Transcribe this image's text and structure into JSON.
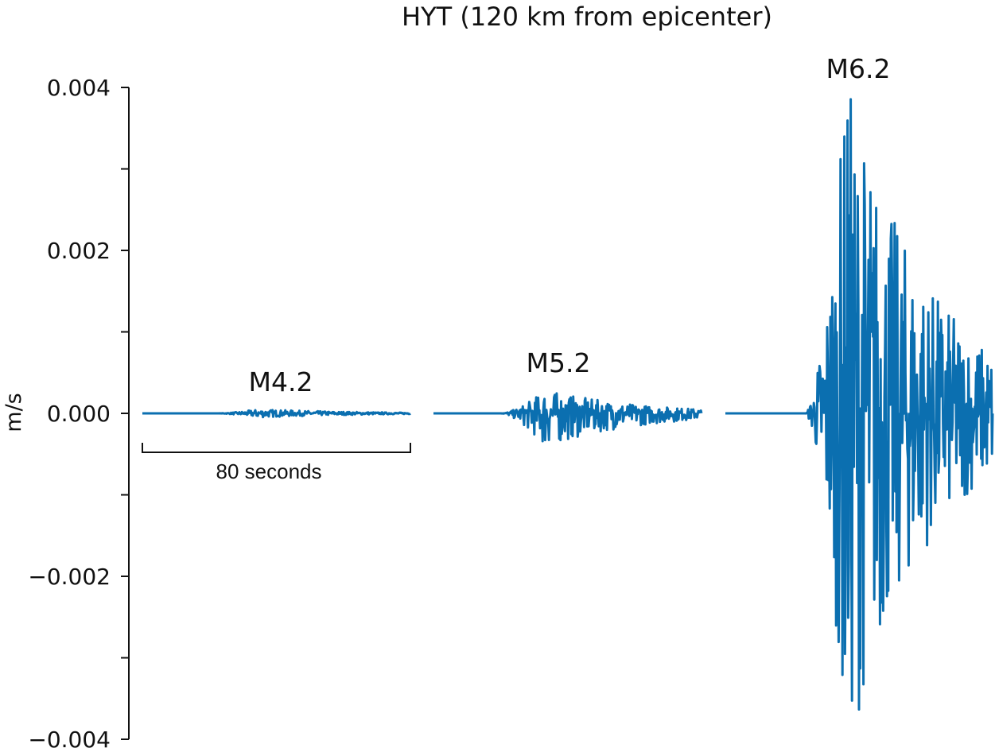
{
  "chart_data": {
    "type": "line",
    "title": "HYT (120 km from epicenter)",
    "ylabel": "m/s",
    "xlabel": "",
    "ylim": [
      -0.004,
      0.004
    ],
    "y_ticks": [
      -0.004,
      -0.003,
      -0.002,
      -0.001,
      0.0,
      0.001,
      0.002,
      0.003,
      0.004
    ],
    "y_tick_labels": [
      "−0.004",
      "",
      "−0.002",
      "",
      "0.000",
      "",
      "0.002",
      "",
      "0.004"
    ],
    "grid": false,
    "color": "#0b6fb0",
    "scale_bar": {
      "seconds": 80,
      "label": "80 seconds"
    },
    "series": [
      {
        "name": "M4.2",
        "duration_s": 80,
        "onset_s": 22,
        "peak_pos": 5e-05,
        "peak_neg": -5e-05
      },
      {
        "name": "M5.2",
        "duration_s": 80,
        "onset_s": 20,
        "peak_pos": 0.00028,
        "peak_neg": -0.0004
      },
      {
        "name": "M6.2",
        "duration_s": 80,
        "onset_s": 24,
        "peak_pos": 0.004,
        "peak_neg": -0.004
      }
    ]
  }
}
